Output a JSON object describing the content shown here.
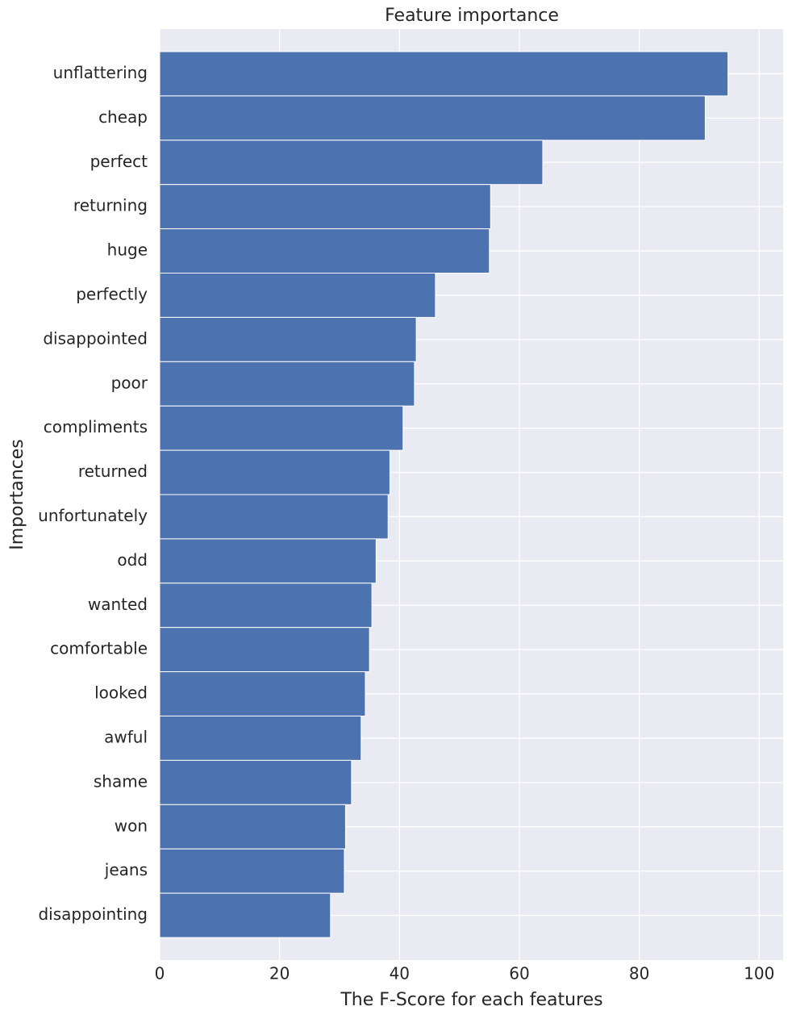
{
  "chart_data": {
    "type": "barh",
    "title": "Feature importance",
    "xlabel": "The F-Score for each features",
    "ylabel": "Importances",
    "categories": [
      "unflattering",
      "cheap",
      "perfect",
      "returning",
      "huge",
      "perfectly",
      "disappointed",
      "poor",
      "compliments",
      "returned",
      "unfortunately",
      "odd",
      "wanted",
      "comfortable",
      "looked",
      "awful",
      "shame",
      "won",
      "jeans",
      "disappointing"
    ],
    "values": [
      94.8,
      91.0,
      63.9,
      55.2,
      55.0,
      46.0,
      42.8,
      42.5,
      40.6,
      38.4,
      38.1,
      36.1,
      35.4,
      35.0,
      34.3,
      33.6,
      32.0,
      31.0,
      30.8,
      28.5
    ],
    "color": "#4c72b0",
    "xlim": [
      0,
      104
    ],
    "xticks": [
      0,
      20,
      40,
      60,
      80,
      100
    ],
    "grid": true
  }
}
